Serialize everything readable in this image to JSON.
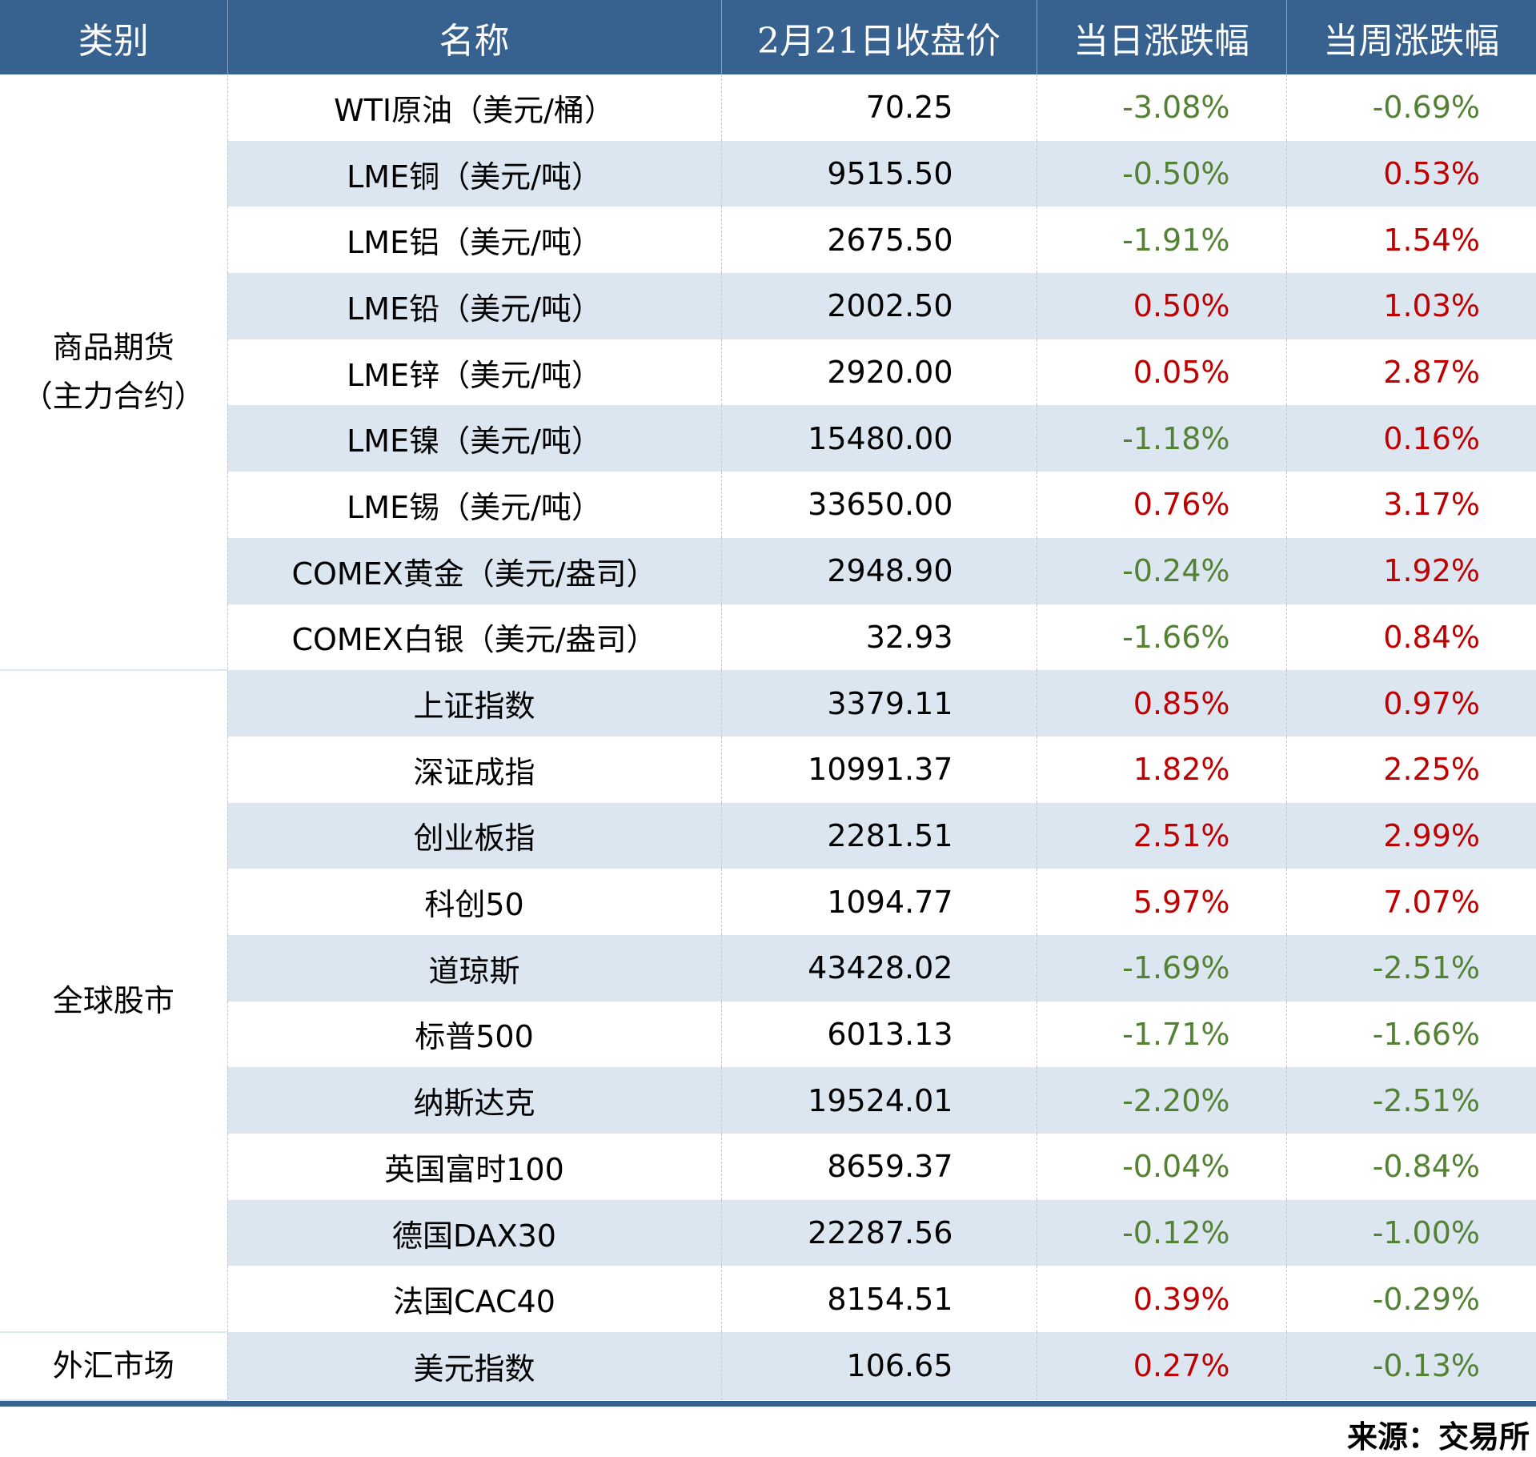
{
  "headers": [
    "类别",
    "名称",
    "2月21日收盘价",
    "当日涨跌幅",
    "当周涨跌幅"
  ],
  "categories": [
    "商品期货\n（主力合约）",
    "全球股市",
    "外汇市场"
  ],
  "colors": {
    "header": "#37618f",
    "stripe": "#dce6f0",
    "up": "#c00000",
    "down": "#548235"
  },
  "rows": [
    {
      "name": "WTI原油（美元/桶）",
      "close": "70.25",
      "day": "-3.08%",
      "week": "-0.69%"
    },
    {
      "name": "LME铜（美元/吨）",
      "close": "9515.50",
      "day": "-0.50%",
      "week": "0.53%"
    },
    {
      "name": "LME铝（美元/吨）",
      "close": "2675.50",
      "day": "-1.91%",
      "week": "1.54%"
    },
    {
      "name": "LME铅（美元/吨）",
      "close": "2002.50",
      "day": "0.50%",
      "week": "1.03%"
    },
    {
      "name": "LME锌（美元/吨）",
      "close": "2920.00",
      "day": "0.05%",
      "week": "2.87%"
    },
    {
      "name": "LME镍（美元/吨）",
      "close": "15480.00",
      "day": "-1.18%",
      "week": "0.16%"
    },
    {
      "name": "LME锡（美元/吨）",
      "close": "33650.00",
      "day": "0.76%",
      "week": "3.17%"
    },
    {
      "name": "COMEX黄金（美元/盎司）",
      "close": "2948.90",
      "day": "-0.24%",
      "week": "1.92%"
    },
    {
      "name": "COMEX白银（美元/盎司）",
      "close": "32.93",
      "day": "-1.66%",
      "week": "0.84%"
    },
    {
      "name": "上证指数",
      "close": "3379.11",
      "day": "0.85%",
      "week": "0.97%"
    },
    {
      "name": "深证成指",
      "close": "10991.37",
      "day": "1.82%",
      "week": "2.25%"
    },
    {
      "name": "创业板指",
      "close": "2281.51",
      "day": "2.51%",
      "week": "2.99%"
    },
    {
      "name": "科创50",
      "close": "1094.77",
      "day": "5.97%",
      "week": "7.07%"
    },
    {
      "name": "道琼斯",
      "close": "43428.02",
      "day": "-1.69%",
      "week": "-2.51%"
    },
    {
      "name": "标普500",
      "close": "6013.13",
      "day": "-1.71%",
      "week": "-1.66%"
    },
    {
      "name": "纳斯达克",
      "close": "19524.01",
      "day": "-2.20%",
      "week": "-2.51%"
    },
    {
      "name": "英国富时100",
      "close": "8659.37",
      "day": "-0.04%",
      "week": "-0.84%"
    },
    {
      "name": "德国DAX30",
      "close": "22287.56",
      "day": "-0.12%",
      "week": "-1.00%"
    },
    {
      "name": "法国CAC40",
      "close": "8154.51",
      "day": "0.39%",
      "week": "-0.29%"
    },
    {
      "name": "美元指数",
      "close": "106.65",
      "day": "0.27%",
      "week": "-0.13%"
    }
  ],
  "source": "来源：交易所"
}
